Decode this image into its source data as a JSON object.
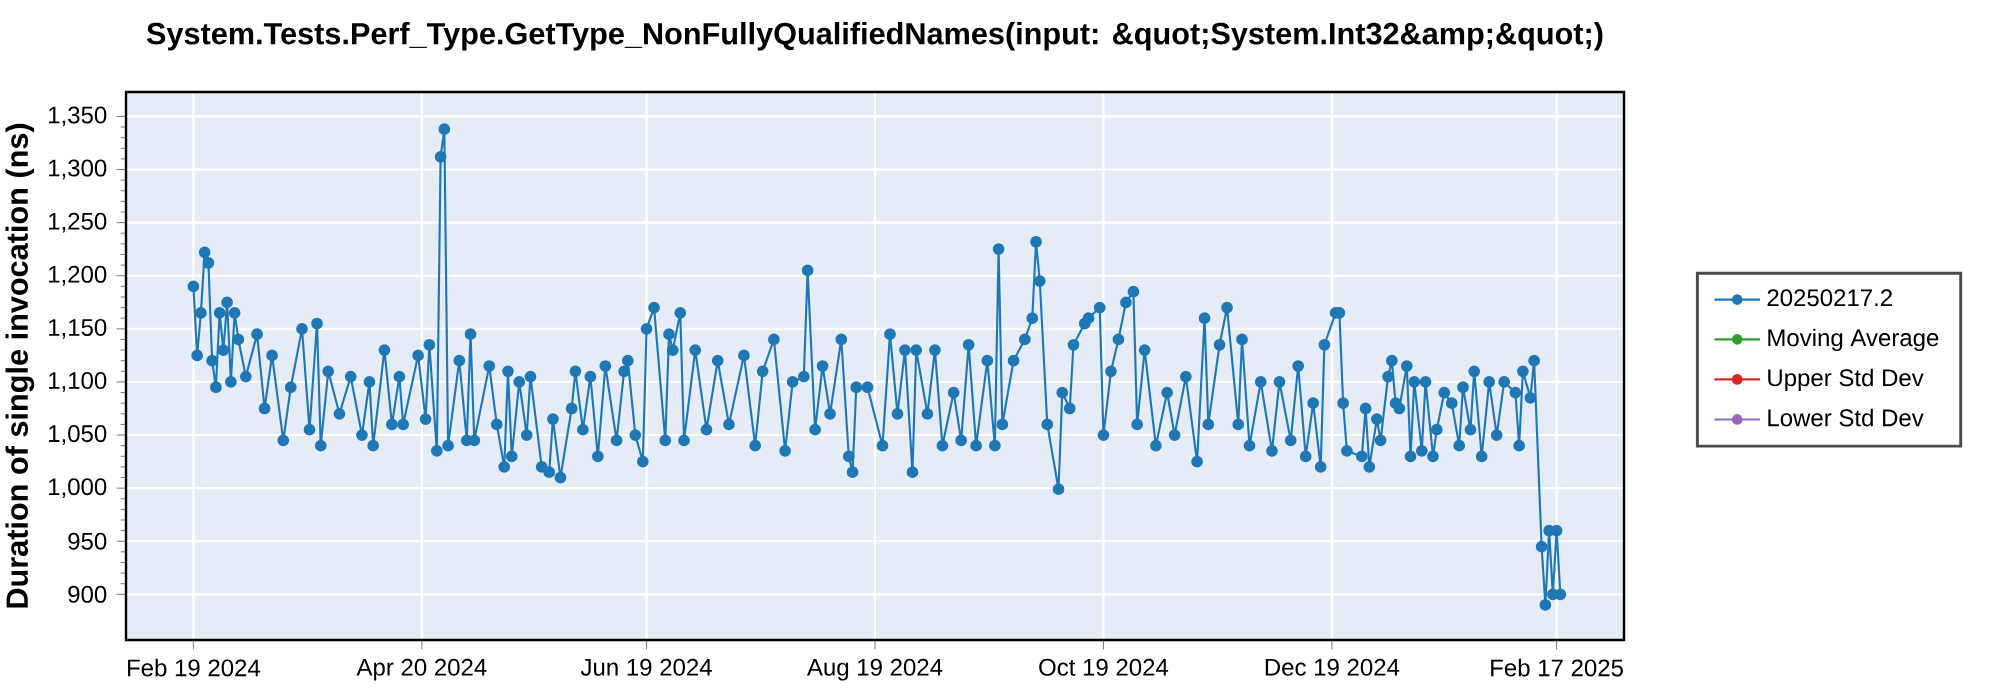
{
  "chart_data": {
    "type": "line",
    "title": "System.Tests.Perf_Type.GetType_NonFullyQualifiedNames(input: &quot;System.Int32&amp;&quot;)",
    "ylabel": "Duration of single invocation (ns)",
    "x": [
      "2024-02-19",
      "2024-02-20",
      "2024-02-21",
      "2024-02-22",
      "2024-02-23",
      "2024-02-24",
      "2024-02-25",
      "2024-02-26",
      "2024-02-27",
      "2024-02-28",
      "2024-02-29",
      "2024-03-01",
      "2024-03-02",
      "2024-03-04",
      "2024-03-07",
      "2024-03-09",
      "2024-03-11",
      "2024-03-14",
      "2024-03-16",
      "2024-03-19",
      "2024-03-21",
      "2024-03-23",
      "2024-03-24",
      "2024-03-26",
      "2024-03-29",
      "2024-04-01",
      "2024-04-04",
      "2024-04-06",
      "2024-04-07",
      "2024-04-10",
      "2024-04-12",
      "2024-04-14",
      "2024-04-15",
      "2024-04-19",
      "2024-04-21",
      "2024-04-22",
      "2024-04-24",
      "2024-04-25",
      "2024-04-26",
      "2024-04-27",
      "2024-04-30",
      "2024-05-02",
      "2024-05-03",
      "2024-05-04",
      "2024-05-08",
      "2024-05-10",
      "2024-05-12",
      "2024-05-13",
      "2024-05-14",
      "2024-05-16",
      "2024-05-18",
      "2024-05-19",
      "2024-05-22",
      "2024-05-24",
      "2024-05-25",
      "2024-05-27",
      "2024-05-30",
      "2024-05-31",
      "2024-06-02",
      "2024-06-04",
      "2024-06-06",
      "2024-06-08",
      "2024-06-11",
      "2024-06-13",
      "2024-06-14",
      "2024-06-16",
      "2024-06-18",
      "2024-06-19",
      "2024-06-21",
      "2024-06-24",
      "2024-06-25",
      "2024-06-26",
      "2024-06-28",
      "2024-06-29",
      "2024-07-02",
      "2024-07-05",
      "2024-07-08",
      "2024-07-11",
      "2024-07-15",
      "2024-07-18",
      "2024-07-20",
      "2024-07-23",
      "2024-07-26",
      "2024-07-28",
      "2024-07-31",
      "2024-08-01",
      "2024-08-03",
      "2024-08-05",
      "2024-08-07",
      "2024-08-10",
      "2024-08-12",
      "2024-08-13",
      "2024-08-14",
      "2024-08-17",
      "2024-08-21",
      "2024-08-23",
      "2024-08-25",
      "2024-08-27",
      "2024-08-29",
      "2024-08-30",
      "2024-09-02",
      "2024-09-04",
      "2024-09-06",
      "2024-09-09",
      "2024-09-11",
      "2024-09-13",
      "2024-09-15",
      "2024-09-18",
      "2024-09-20",
      "2024-09-21",
      "2024-09-22",
      "2024-09-25",
      "2024-09-28",
      "2024-09-30",
      "2024-10-01",
      "2024-10-02",
      "2024-10-04",
      "2024-10-07",
      "2024-10-08",
      "2024-10-10",
      "2024-10-11",
      "2024-10-14",
      "2024-10-15",
      "2024-10-18",
      "2024-10-19",
      "2024-10-21",
      "2024-10-23",
      "2024-10-25",
      "2024-10-27",
      "2024-10-28",
      "2024-10-30",
      "2024-11-02",
      "2024-11-05",
      "2024-11-07",
      "2024-11-10",
      "2024-11-13",
      "2024-11-15",
      "2024-11-16",
      "2024-11-19",
      "2024-11-21",
      "2024-11-24",
      "2024-11-25",
      "2024-11-27",
      "2024-11-30",
      "2024-12-03",
      "2024-12-05",
      "2024-12-08",
      "2024-12-10",
      "2024-12-12",
      "2024-12-14",
      "2024-12-16",
      "2024-12-17",
      "2024-12-20",
      "2024-12-21",
      "2024-12-22",
      "2024-12-23",
      "2024-12-27",
      "2024-12-28",
      "2024-12-29",
      "2024-12-31",
      "2025-01-01",
      "2025-01-03",
      "2025-01-04",
      "2025-01-05",
      "2025-01-06",
      "2025-01-08",
      "2025-01-09",
      "2025-01-10",
      "2025-01-12",
      "2025-01-13",
      "2025-01-15",
      "2025-01-16",
      "2025-01-18",
      "2025-01-20",
      "2025-01-22",
      "2025-01-23",
      "2025-01-25",
      "2025-01-26",
      "2025-01-28",
      "2025-01-30",
      "2025-02-01",
      "2025-02-03",
      "2025-02-06",
      "2025-02-07",
      "2025-02-08",
      "2025-02-10",
      "2025-02-11",
      "2025-02-13",
      "2025-02-14",
      "2025-02-15",
      "2025-02-16",
      "2025-02-17",
      "2025-02-18"
    ],
    "series": [
      {
        "name": "20250217.2",
        "color": "#1f77b4",
        "values": [
          1190,
          1125,
          1165,
          1222,
          1212,
          1120,
          1095,
          1165,
          1130,
          1175,
          1100,
          1165,
          1140,
          1105,
          1145,
          1075,
          1125,
          1045,
          1095,
          1150,
          1055,
          1155,
          1040,
          1110,
          1070,
          1105,
          1050,
          1100,
          1040,
          1130,
          1060,
          1105,
          1060,
          1125,
          1065,
          1135,
          1035,
          1312,
          1338,
          1040,
          1120,
          1045,
          1145,
          1045,
          1115,
          1060,
          1020,
          1110,
          1030,
          1100,
          1050,
          1105,
          1020,
          1015,
          1065,
          1010,
          1075,
          1110,
          1055,
          1105,
          1030,
          1115,
          1045,
          1110,
          1120,
          1050,
          1025,
          1150,
          1170,
          1045,
          1145,
          1130,
          1165,
          1045,
          1130,
          1055,
          1120,
          1060,
          1125,
          1040,
          1110,
          1140,
          1035,
          1100,
          1105,
          1205,
          1055,
          1115,
          1070,
          1140,
          1030,
          1015,
          1095,
          1095,
          1040,
          1145,
          1070,
          1130,
          1015,
          1130,
          1070,
          1130,
          1040,
          1090,
          1045,
          1135,
          1040,
          1120,
          1040,
          1225,
          1060,
          1120,
          1140,
          1160,
          1232,
          1195,
          1060,
          999,
          1090,
          1075,
          1135,
          1155,
          1160,
          1170,
          1050,
          1110,
          1140,
          1175,
          1185,
          1060,
          1130,
          1040,
          1090,
          1050,
          1105,
          1025,
          1160,
          1060,
          1135,
          1170,
          1060,
          1140,
          1040,
          1100,
          1035,
          1100,
          1045,
          1115,
          1030,
          1080,
          1020,
          1135,
          1165,
          1165,
          1080,
          1035,
          1030,
          1075,
          1020,
          1065,
          1045,
          1105,
          1120,
          1080,
          1075,
          1115,
          1030,
          1100,
          1035,
          1100,
          1030,
          1055,
          1090,
          1080,
          1040,
          1095,
          1055,
          1110,
          1030,
          1100,
          1050,
          1100,
          1090,
          1040,
          1110,
          1085,
          1120,
          945,
          890,
          960,
          900,
          960,
          900
        ]
      },
      {
        "name": "Moving Average",
        "color": "#2ca02c",
        "values": [
          null,
          null,
          null,
          null,
          null,
          null,
          null,
          null,
          null,
          null,
          null,
          null,
          null,
          null,
          null,
          null,
          null,
          null,
          null,
          null,
          null,
          null,
          null,
          null,
          null,
          null,
          null,
          null,
          null,
          null,
          null,
          null,
          null,
          null,
          null,
          null,
          null,
          null,
          null,
          null,
          null,
          null,
          null,
          null,
          null,
          null,
          null,
          null,
          null,
          null,
          null,
          null,
          null,
          null,
          null,
          null,
          null,
          null,
          null,
          null,
          null,
          null,
          null,
          null,
          null,
          null,
          null,
          null,
          null,
          null,
          null,
          null,
          null,
          null,
          null,
          null,
          null,
          null,
          null,
          null,
          null,
          null,
          null,
          null,
          null,
          null,
          null,
          null,
          null,
          null,
          null,
          null,
          null,
          null,
          null,
          null,
          null,
          null,
          null,
          null,
          null,
          null,
          null,
          null,
          null,
          null,
          null,
          null,
          null,
          null,
          null,
          null,
          null,
          null,
          null,
          null,
          null,
          null,
          null,
          null,
          null,
          null,
          null,
          null,
          null,
          null,
          null,
          null,
          null,
          null,
          null,
          null,
          null,
          null,
          null,
          null,
          null,
          null,
          null,
          null,
          null,
          null,
          null,
          null,
          null,
          null,
          null,
          null,
          null,
          null,
          null,
          null,
          null,
          null,
          null,
          null,
          null,
          null,
          null,
          null,
          null,
          null,
          null,
          null,
          null,
          null,
          null,
          null,
          null,
          null,
          null,
          null,
          null,
          null,
          null,
          null,
          null,
          null,
          null,
          null,
          null,
          null,
          null,
          null,
          null,
          null,
          null,
          null,
          null,
          null,
          null,
          null,
          null
        ]
      },
      {
        "name": "Upper Std Dev",
        "color": "#d62728",
        "values": [
          null,
          null,
          null,
          null,
          null,
          null,
          null,
          null,
          null,
          null,
          null,
          null,
          null,
          null,
          null,
          null,
          null,
          null,
          null,
          null,
          null,
          null,
          null,
          null,
          null,
          null,
          null,
          null,
          null,
          null,
          null,
          null,
          null,
          null,
          null,
          null,
          null,
          null,
          null,
          null,
          null,
          null,
          null,
          null,
          null,
          null,
          null,
          null,
          null,
          null,
          null,
          null,
          null,
          null,
          null,
          null,
          null,
          null,
          null,
          null,
          null,
          null,
          null,
          null,
          null,
          null,
          null,
          null,
          null,
          null,
          null,
          null,
          null,
          null,
          null,
          null,
          null,
          null,
          null,
          null,
          null,
          null,
          null,
          null,
          null,
          null,
          null,
          null,
          null,
          null,
          null,
          null,
          null,
          null,
          null,
          null,
          null,
          null,
          null,
          null,
          null,
          null,
          null,
          null,
          null,
          null,
          null,
          null,
          null,
          null,
          null,
          null,
          null,
          null,
          null,
          null,
          null,
          null,
          null,
          null,
          null,
          null,
          null,
          null,
          null,
          null,
          null,
          null,
          null,
          null,
          null,
          null,
          null,
          null,
          null,
          null,
          null,
          null,
          null,
          null,
          null,
          null,
          null,
          null,
          null,
          null,
          null,
          null,
          null,
          null,
          null,
          null,
          null,
          null,
          null,
          null,
          null,
          null,
          null,
          null,
          null,
          null,
          null,
          null,
          null,
          null,
          null,
          null,
          null,
          null,
          null,
          null,
          null,
          null,
          null,
          null,
          null,
          null,
          null,
          null,
          null,
          null,
          null,
          null,
          null,
          null,
          null,
          null,
          null,
          null,
          null,
          null,
          null
        ]
      },
      {
        "name": "Lower Std Dev",
        "color": "#9467bd",
        "values": [
          null,
          null,
          null,
          null,
          null,
          null,
          null,
          null,
          null,
          null,
          null,
          null,
          null,
          null,
          null,
          null,
          null,
          null,
          null,
          null,
          null,
          null,
          null,
          null,
          null,
          null,
          null,
          null,
          null,
          null,
          null,
          null,
          null,
          null,
          null,
          null,
          null,
          null,
          null,
          null,
          null,
          null,
          null,
          null,
          null,
          null,
          null,
          null,
          null,
          null,
          null,
          null,
          null,
          null,
          null,
          null,
          null,
          null,
          null,
          null,
          null,
          null,
          null,
          null,
          null,
          null,
          null,
          null,
          null,
          null,
          null,
          null,
          null,
          null,
          null,
          null,
          null,
          null,
          null,
          null,
          null,
          null,
          null,
          null,
          null,
          null,
          null,
          null,
          null,
          null,
          null,
          null,
          null,
          null,
          null,
          null,
          null,
          null,
          null,
          null,
          null,
          null,
          null,
          null,
          null,
          null,
          null,
          null,
          null,
          null,
          null,
          null,
          null,
          null,
          null,
          null,
          null,
          null,
          null,
          null,
          null,
          null,
          null,
          null,
          null,
          null,
          null,
          null,
          null,
          null,
          null,
          null,
          null,
          null,
          null,
          null,
          null,
          null,
          null,
          null,
          null,
          null,
          null,
          null,
          null,
          null,
          null,
          null,
          null,
          null,
          null,
          null,
          null,
          null,
          null,
          null,
          null,
          null,
          null,
          null,
          null,
          null,
          null,
          null,
          null,
          null,
          null,
          null,
          null,
          null,
          null,
          null,
          null,
          null,
          null,
          null,
          null,
          null,
          null,
          null,
          null,
          null,
          null,
          null,
          null,
          null,
          null,
          null,
          null,
          null,
          null,
          null,
          null
        ]
      }
    ],
    "xlim": [
      "2024-02-01",
      "2025-03-07"
    ],
    "xticks": [
      {
        "value": "2024-02-19",
        "label": "Feb 19 2024"
      },
      {
        "value": "2024-04-20",
        "label": "Apr 20 2024"
      },
      {
        "value": "2024-06-19",
        "label": "Jun 19 2024"
      },
      {
        "value": "2024-08-19",
        "label": "Aug 19 2024"
      },
      {
        "value": "2024-10-19",
        "label": "Oct 19 2024"
      },
      {
        "value": "2024-12-19",
        "label": "Dec 19 2024"
      },
      {
        "value": "2025-02-17",
        "label": "Feb 17 2025"
      }
    ],
    "ylim": [
      857,
      1373
    ],
    "yticks": [
      900,
      950,
      {
        "value": 1000,
        "label": "1,000"
      },
      {
        "value": 1050,
        "label": "1,050"
      },
      {
        "value": 1100,
        "label": "1,100"
      },
      {
        "value": 1150,
        "label": "1,150"
      },
      {
        "value": 1200,
        "label": "1,200"
      },
      {
        "value": 1250,
        "label": "1,250"
      },
      {
        "value": 1300,
        "label": "1,300"
      },
      {
        "value": 1350,
        "label": "1,350"
      }
    ],
    "grid": true,
    "legend": "right",
    "marker": "circle",
    "line_style": "solid"
  }
}
